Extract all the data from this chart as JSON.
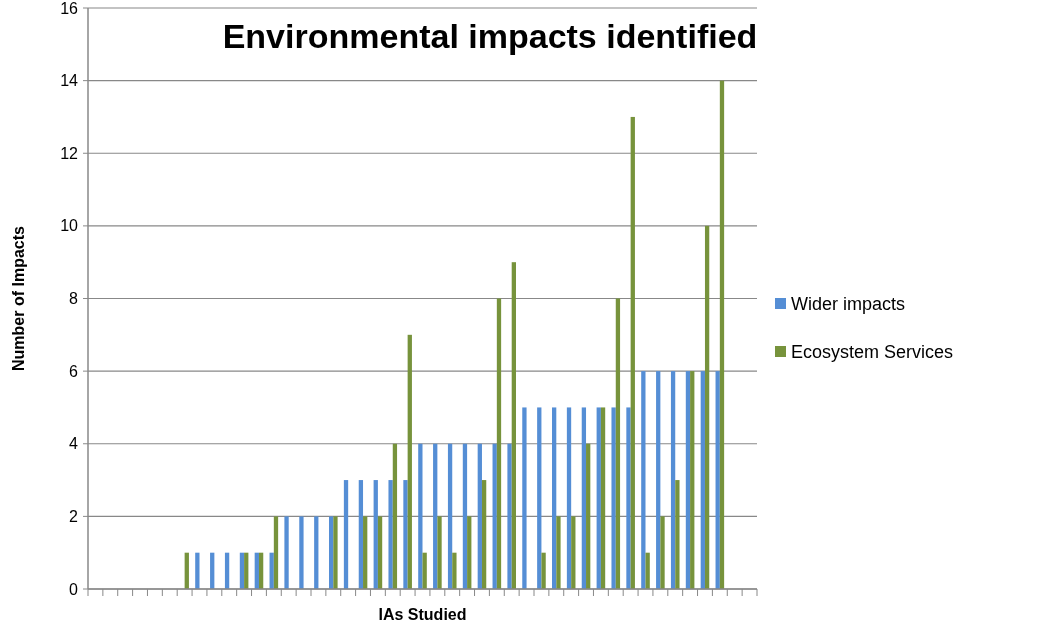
{
  "chart_data": {
    "type": "bar",
    "title": "Environmental impacts identified",
    "xlabel": "IAs Studied",
    "ylabel": "Number of Impacts",
    "categories": [
      null,
      null,
      null,
      null,
      null,
      null,
      null,
      null,
      null,
      null,
      null,
      null,
      null,
      null,
      null,
      null,
      null,
      null,
      null,
      null,
      null,
      null,
      null,
      null,
      null,
      null,
      null,
      null,
      null,
      null,
      null,
      null,
      null,
      null,
      null,
      null,
      null,
      null,
      null,
      null,
      null,
      null,
      null,
      null,
      null
    ],
    "series": [
      {
        "name": "Wider impacts",
        "color": "#558ed5",
        "values": [
          0,
          0,
          0,
          0,
          0,
          0,
          0,
          1,
          1,
          1,
          1,
          1,
          1,
          2,
          2,
          2,
          2,
          3,
          3,
          3,
          3,
          3,
          4,
          4,
          4,
          4,
          4,
          4,
          4,
          5,
          5,
          5,
          5,
          5,
          5,
          5,
          5,
          6,
          6,
          6,
          6,
          6,
          6,
          0,
          0
        ]
      },
      {
        "name": "Ecosystem Services",
        "color": "#77933c",
        "values": [
          0,
          0,
          0,
          0,
          0,
          0,
          1,
          0,
          0,
          0,
          1,
          1,
          2,
          0,
          0,
          0,
          2,
          0,
          2,
          2,
          4,
          7,
          1,
          2,
          1,
          2,
          3,
          8,
          9,
          0,
          1,
          2,
          2,
          4,
          5,
          8,
          13,
          1,
          2,
          3,
          6,
          10,
          14,
          0,
          0
        ]
      }
    ],
    "ylim": [
      0,
      16
    ],
    "yticks": [
      0,
      2,
      4,
      6,
      8,
      10,
      12,
      14,
      16
    ],
    "grid": "y",
    "legend": "right"
  }
}
